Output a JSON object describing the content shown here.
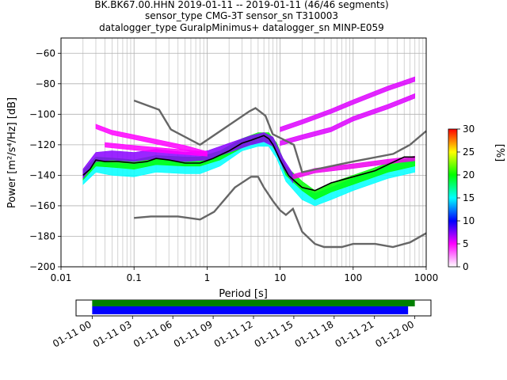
{
  "title_lines": [
    "BK.BK67.00.HHN   2019-01-11 -- 2019-01-11  (46/46 segments)",
    "sensor_type CMG-3T sensor_sn T310003",
    "datalogger_type GuralpMinimus+ datalogger_sn MINP-E059"
  ],
  "chart_data": {
    "type": "heatmap",
    "xlabel": "Period [s]",
    "ylabel": "Power [m²/s⁴/Hz] [dB]",
    "x_scale": "log",
    "xlim": [
      0.01,
      1000
    ],
    "ylim": [
      -200,
      -50
    ],
    "x_ticks": [
      0.01,
      0.1,
      1,
      10,
      100,
      1000
    ],
    "x_tick_labels": [
      "0.01",
      "0.1",
      "1",
      "10",
      "100",
      "1000"
    ],
    "y_ticks": [
      -200,
      -180,
      -160,
      -140,
      -120,
      -100,
      -80,
      -60
    ],
    "y_tick_labels": [
      "−200",
      "−180",
      "−160",
      "−140",
      "−120",
      "−100",
      "−80",
      "−60"
    ],
    "grid": true,
    "colorbar": {
      "label": "[%]",
      "range": [
        0,
        30
      ],
      "ticks": [
        0,
        5,
        10,
        15,
        20,
        25,
        30
      ],
      "colors": [
        "#ffffff",
        "#ff00ff",
        "#0000ff",
        "#00ffff",
        "#00ff00",
        "#ffff00",
        "#ff0000"
      ]
    },
    "mode_line": {
      "name": "mode",
      "color": "#000000",
      "points": [
        [
          0.02,
          -140
        ],
        [
          0.025,
          -136
        ],
        [
          0.03,
          -130
        ],
        [
          0.04,
          -131
        ],
        [
          0.06,
          -131
        ],
        [
          0.1,
          -132
        ],
        [
          0.15,
          -131
        ],
        [
          0.2,
          -129
        ],
        [
          0.3,
          -130
        ],
        [
          0.5,
          -132
        ],
        [
          0.8,
          -132
        ],
        [
          1.2,
          -129
        ],
        [
          2,
          -124
        ],
        [
          3,
          -119
        ],
        [
          4,
          -117
        ],
        [
          6,
          -114
        ],
        [
          7,
          -116
        ],
        [
          8,
          -120
        ],
        [
          10,
          -130
        ],
        [
          13,
          -140
        ],
        [
          16,
          -144
        ],
        [
          20,
          -148
        ],
        [
          30,
          -150
        ],
        [
          50,
          -145
        ],
        [
          100,
          -141
        ],
        [
          200,
          -137
        ],
        [
          300,
          -133
        ],
        [
          500,
          -128
        ],
        [
          700,
          -128
        ]
      ]
    },
    "nlnm": {
      "name": "NLNM",
      "color": "#666666",
      "points": [
        [
          0.1,
          -168
        ],
        [
          0.17,
          -167
        ],
        [
          0.4,
          -167
        ],
        [
          0.8,
          -169
        ],
        [
          1.25,
          -164
        ],
        [
          2.4,
          -148
        ],
        [
          4,
          -141
        ],
        [
          5,
          -141
        ],
        [
          6,
          -148
        ],
        [
          8,
          -157
        ],
        [
          10,
          -163
        ],
        [
          12,
          -166
        ],
        [
          15,
          -162
        ],
        [
          20,
          -177
        ],
        [
          30,
          -185
        ],
        [
          40,
          -187
        ],
        [
          70,
          -187
        ],
        [
          100,
          -185
        ],
        [
          200,
          -185
        ],
        [
          350,
          -187
        ],
        [
          600,
          -184
        ],
        [
          1000,
          -178
        ]
      ]
    },
    "nhnm": {
      "name": "NHNM",
      "color": "#666666",
      "points": [
        [
          0.1,
          -91
        ],
        [
          0.22,
          -97
        ],
        [
          0.32,
          -110
        ],
        [
          0.8,
          -120
        ],
        [
          3.8,
          -98
        ],
        [
          4.6,
          -96
        ],
        [
          6.3,
          -101
        ],
        [
          7.9,
          -113
        ],
        [
          15.4,
          -120
        ],
        [
          20,
          -138
        ],
        [
          100,
          -131
        ],
        [
          354,
          -126
        ],
        [
          600,
          -120
        ],
        [
          1000,
          -111
        ]
      ]
    },
    "density_bands": [
      {
        "name": "lower-main",
        "color": "#00ffff",
        "half_width": 4,
        "points": [
          [
            0.02,
            -142
          ],
          [
            0.03,
            -134
          ],
          [
            0.05,
            -136
          ],
          [
            0.1,
            -137
          ],
          [
            0.2,
            -134
          ],
          [
            0.5,
            -135
          ],
          [
            0.8,
            -135
          ],
          [
            1.5,
            -130
          ],
          [
            3,
            -120
          ],
          [
            5,
            -117
          ],
          [
            7,
            -117
          ],
          [
            9,
            -125
          ],
          [
            12,
            -140
          ],
          [
            20,
            -152
          ],
          [
            30,
            -156
          ],
          [
            50,
            -152
          ],
          [
            100,
            -146
          ],
          [
            300,
            -138
          ],
          [
            700,
            -134
          ]
        ]
      },
      {
        "name": "core",
        "color": "#00ff00",
        "half_width": 3,
        "points": [
          [
            0.02,
            -140
          ],
          [
            0.03,
            -131
          ],
          [
            0.06,
            -132
          ],
          [
            0.1,
            -133
          ],
          [
            0.2,
            -130
          ],
          [
            0.5,
            -131
          ],
          [
            0.8,
            -131
          ],
          [
            1.5,
            -127
          ],
          [
            3,
            -119
          ],
          [
            5,
            -115
          ],
          [
            7,
            -115
          ],
          [
            9,
            -122
          ],
          [
            12,
            -137
          ],
          [
            20,
            -147
          ],
          [
            30,
            -153
          ],
          [
            50,
            -148
          ],
          [
            100,
            -143
          ],
          [
            300,
            -135
          ],
          [
            700,
            -131
          ]
        ]
      },
      {
        "name": "upper-purple",
        "color": "#8800ff",
        "half_width": 3,
        "points": [
          [
            0.02,
            -139
          ],
          [
            0.03,
            -128
          ],
          [
            0.05,
            -127
          ],
          [
            0.1,
            -128
          ],
          [
            0.2,
            -126
          ],
          [
            0.5,
            -128
          ],
          [
            1,
            -127
          ],
          [
            2,
            -122
          ],
          [
            4,
            -117
          ],
          [
            6,
            -115
          ],
          [
            8,
            -118
          ],
          [
            11,
            -132
          ],
          [
            15,
            -142
          ]
        ]
      },
      {
        "name": "upper-magenta-a",
        "color": "#ff00ff",
        "half_width": 1.5,
        "points": [
          [
            0.03,
            -108
          ],
          [
            0.05,
            -112
          ],
          [
            0.1,
            -115
          ],
          [
            0.2,
            -118
          ],
          [
            0.5,
            -122
          ],
          [
            1,
            -126
          ]
        ]
      },
      {
        "name": "upper-magenta-b",
        "color": "#ff00ff",
        "half_width": 1.5,
        "points": [
          [
            0.04,
            -120
          ],
          [
            0.1,
            -122
          ],
          [
            0.3,
            -124
          ],
          [
            1,
            -126
          ]
        ]
      },
      {
        "name": "long-period-magenta-a",
        "color": "#dd00ff",
        "half_width": 1.5,
        "points": [
          [
            10,
            -110
          ],
          [
            20,
            -105
          ],
          [
            50,
            -98
          ],
          [
            100,
            -92
          ],
          [
            300,
            -83
          ],
          [
            700,
            -77
          ]
        ]
      },
      {
        "name": "long-period-magenta-b",
        "color": "#dd00ff",
        "half_width": 1.5,
        "points": [
          [
            10,
            -119
          ],
          [
            20,
            -115
          ],
          [
            50,
            -110
          ],
          [
            100,
            -103
          ],
          [
            300,
            -95
          ],
          [
            700,
            -88
          ]
        ]
      },
      {
        "name": "long-period-magenta-c",
        "color": "#ee00ee",
        "half_width": 1.5,
        "points": [
          [
            15,
            -141
          ],
          [
            30,
            -137
          ],
          [
            100,
            -134
          ],
          [
            300,
            -131
          ],
          [
            700,
            -129
          ]
        ]
      }
    ]
  },
  "timeline": {
    "tick_labels": [
      "01-11 00",
      "01-11 03",
      "01-11 06",
      "01-11 09",
      "01-11 12",
      "01-11 15",
      "01-11 18",
      "01-11 21",
      "01-12 00"
    ],
    "tick_hours": [
      0,
      3,
      6,
      9,
      12,
      15,
      18,
      21,
      24
    ],
    "range_hours": [
      -1.2,
      25.2
    ],
    "green_bar": {
      "color": "#008000",
      "start_hour": 0,
      "end_hour": 24.0
    },
    "blue_bar": {
      "color": "#0000ff",
      "start_hour": 0,
      "end_hour": 23.5
    }
  }
}
